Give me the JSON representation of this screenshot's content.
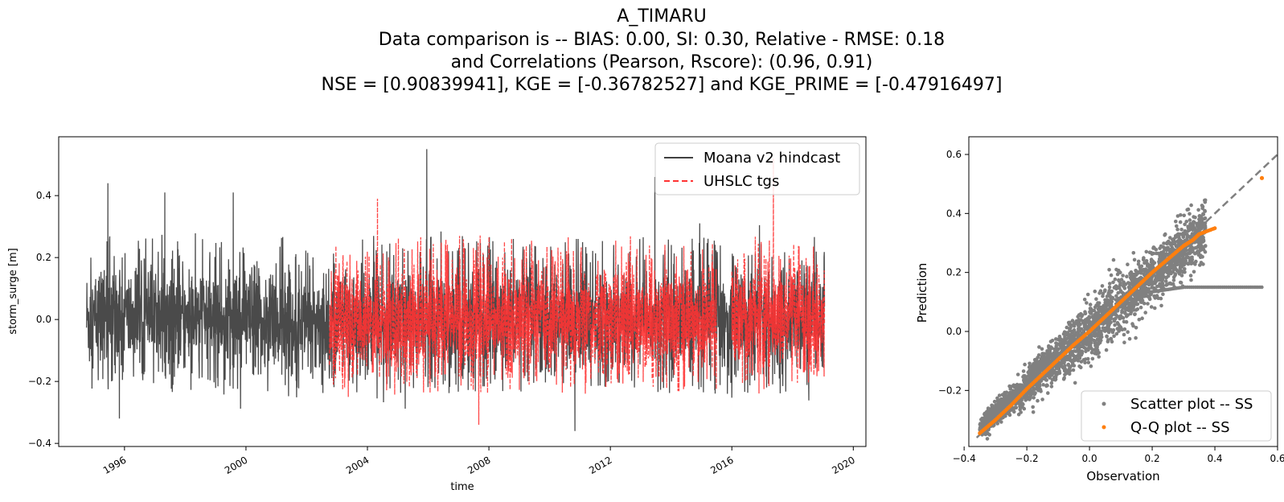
{
  "title_lines": [
    "A_TIMARU",
    "Data comparison is   --   BIAS: 0.00, SI: 0.30, Relative - RMSE: 0.18",
    "and Correlations (Pearson, Rscore): (0.96, 0.91)",
    "NSE = [0.90839941], KGE = [-0.36782527] and KGE_PRIME = [-0.47916497]"
  ],
  "chart_data": [
    {
      "type": "line",
      "xlabel": "time",
      "ylabel": "storm_surge [m]",
      "x_axis_type": "date",
      "xlim": [
        "1993-11-01",
        "2020-06-01"
      ],
      "ylim": [
        -0.41,
        0.59
      ],
      "x_ticks": [
        "1996",
        "2000",
        "2004",
        "2008",
        "2012",
        "2016",
        "2020"
      ],
      "y_ticks": [
        "−0.4",
        "−0.2",
        "0.0",
        "0.2",
        "0.4"
      ],
      "grid": false,
      "legend_position": "top-right",
      "series": [
        {
          "name": "Moana v2 hindcast",
          "color": "#404040",
          "style": "solid",
          "range": [
            "1994-10-01",
            "2019-01-20"
          ],
          "typical_min": -0.24,
          "typical_max": 0.27,
          "peaks": [
            {
              "x": "1995-06-15",
              "y": 0.44
            },
            {
              "x": "1997-05-01",
              "y": 0.41
            },
            {
              "x": "1999-08-01",
              "y": 0.41
            },
            {
              "x": "2005-12-15",
              "y": 0.55
            },
            {
              "x": "2013-06-20",
              "y": 0.46
            },
            {
              "x": "1995-11-01",
              "y": -0.32
            },
            {
              "x": "2010-11-01",
              "y": -0.36
            }
          ]
        },
        {
          "name": "UHSLC tgs",
          "color": "#ff3333",
          "style": "dashed",
          "segments": [
            [
              "2002-10-01",
              "2015-07-01"
            ],
            [
              "2016-01-01",
              "2019-01-20"
            ]
          ],
          "typical_min": -0.24,
          "typical_max": 0.27,
          "peaks": [
            {
              "x": "2017-05-15",
              "y": 0.52
            },
            {
              "x": "2004-05-01",
              "y": 0.39
            },
            {
              "x": "2007-09-01",
              "y": -0.34
            }
          ]
        }
      ]
    },
    {
      "type": "scatter",
      "xlabel": "Observation",
      "ylabel": "Prediction",
      "xlim": [
        -0.385,
        0.6
      ],
      "ylim": [
        -0.39,
        0.66
      ],
      "x_ticks": [
        "−0.4",
        "−0.2",
        "0.0",
        "0.2",
        "0.4",
        "0.6"
      ],
      "y_ticks": [
        "−0.2",
        "0.0",
        "0.2",
        "0.4",
        "0.6"
      ],
      "grid": false,
      "legend_position": "bottom-right",
      "reference_line": {
        "from": [
          -0.36,
          -0.36
        ],
        "to": [
          0.6,
          0.6
        ],
        "color": "#808080",
        "style": "dashed"
      },
      "series": [
        {
          "name": "Scatter plot -- SS",
          "color": "#808080",
          "cloud_center_slope": 0.93,
          "spread": 0.08,
          "x_range": [
            -0.35,
            0.37
          ],
          "outlier_branch": [
            {
              "x": 0.17,
              "y": 0.13
            },
            {
              "x": 0.3,
              "y": 0.15
            },
            {
              "x": 0.55,
              "y": 0.15
            }
          ]
        },
        {
          "name": "Q-Q plot -- SS",
          "color": "#ff7f0e",
          "points": [
            [
              -0.35,
              -0.345
            ],
            [
              -0.3,
              -0.3
            ],
            [
              -0.25,
              -0.25
            ],
            [
              -0.2,
              -0.195
            ],
            [
              -0.15,
              -0.145
            ],
            [
              -0.1,
              -0.095
            ],
            [
              -0.05,
              -0.045
            ],
            [
              0.0,
              0.0
            ],
            [
              0.05,
              0.05
            ],
            [
              0.1,
              0.1
            ],
            [
              0.15,
              0.15
            ],
            [
              0.2,
              0.2
            ],
            [
              0.25,
              0.245
            ],
            [
              0.3,
              0.29
            ],
            [
              0.33,
              0.31
            ],
            [
              0.35,
              0.33
            ],
            [
              0.4,
              0.35
            ],
            [
              0.55,
              0.52
            ]
          ]
        }
      ]
    }
  ]
}
